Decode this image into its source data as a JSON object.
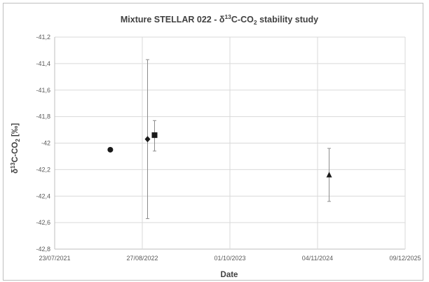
{
  "chart_data": {
    "type": "scatter",
    "title": {
      "pre": "Mixture STELLAR 022  - δ",
      "sup": "13",
      "mid": "C-CO",
      "sub": "2",
      "post": " stability study"
    },
    "xlabel": "Date",
    "ylabel": {
      "pre": "δ",
      "sup": "13",
      "mid": "C-CO",
      "sub": "2",
      "post": " [‰]"
    },
    "xlim": [
      "2021-07-23",
      "2025-12-09"
    ],
    "ylim": [
      -42.8,
      -41.2
    ],
    "x_ticks": [
      {
        "value": "2021-07-23",
        "label": "23/07/2021"
      },
      {
        "value": "2022-08-27",
        "label": "27/08/2022"
      },
      {
        "value": "2023-10-01",
        "label": "01/10/2023"
      },
      {
        "value": "2024-11-04",
        "label": "04/11/2024"
      },
      {
        "value": "2025-12-09",
        "label": "09/12/2025"
      }
    ],
    "y_ticks": [
      {
        "value": -41.2,
        "label": "-41,2"
      },
      {
        "value": -41.4,
        "label": "-41,4"
      },
      {
        "value": -41.6,
        "label": "-41,6"
      },
      {
        "value": -41.8,
        "label": "-41,8"
      },
      {
        "value": -42.0,
        "label": "-42"
      },
      {
        "value": -42.2,
        "label": "-42,2"
      },
      {
        "value": -42.4,
        "label": "-42,4"
      },
      {
        "value": -42.6,
        "label": "-42,6"
      },
      {
        "value": -42.8,
        "label": "-42,8"
      }
    ],
    "grid": true,
    "legend": "none",
    "series": [
      {
        "marker": "circle",
        "points": [
          {
            "x": "2022-04-03",
            "y": -42.05,
            "err_low": -42.06,
            "err_high": -42.04
          }
        ]
      },
      {
        "marker": "diamond",
        "points": [
          {
            "x": "2022-09-20",
            "y": -41.97,
            "err_low": -42.57,
            "err_high": -41.37
          }
        ]
      },
      {
        "marker": "square",
        "points": [
          {
            "x": "2022-10-22",
            "y": -41.94,
            "err_low": -42.06,
            "err_high": -41.83
          }
        ]
      },
      {
        "marker": "triangle",
        "points": [
          {
            "x": "2024-12-27",
            "y": -42.24,
            "err_low": -42.44,
            "err_high": -42.04
          }
        ]
      }
    ],
    "colors": {
      "marker": "#1a1a1a",
      "error_bar": "#8c8c8c",
      "grid": "#d9d9d9",
      "text": "#404040"
    }
  }
}
